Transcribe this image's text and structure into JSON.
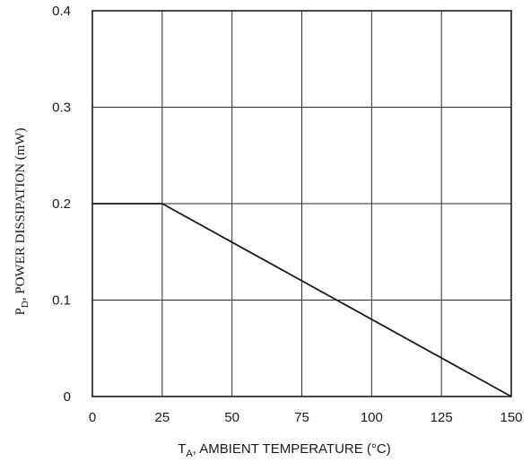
{
  "chart_data": {
    "type": "line",
    "title": "",
    "xlabel": "T_A, AMBIENT TEMPERATURE (°C)",
    "ylabel": "P_D, POWER DISSIPATION (mW)",
    "xlabel_parts": {
      "main": "T",
      "subscript": "A",
      "rest": ", AMBIENT TEMPERATURE (°C)"
    },
    "ylabel_parts": {
      "main": "P",
      "subscript": "D",
      "rest": ", POWER DISSIPATION (mW)"
    },
    "xlim": [
      0,
      150
    ],
    "ylim": [
      0,
      0.4
    ],
    "x_ticks": [
      0,
      25,
      50,
      75,
      100,
      125,
      150
    ],
    "x_tick_labels": [
      "0",
      "25",
      "50",
      "75",
      "100",
      "125",
      "150"
    ],
    "y_ticks": [
      0,
      0.1,
      0.2,
      0.3,
      0.4
    ],
    "y_tick_labels": [
      "0",
      "0.1",
      "0.2",
      "0.3",
      "0.4"
    ],
    "grid": true,
    "series": [
      {
        "x": [
          0,
          25,
          150
        ],
        "y": [
          0.2,
          0.2,
          0
        ]
      }
    ],
    "colors": {
      "line": "#1a1a1a",
      "grid": "#2a2a2a"
    }
  }
}
